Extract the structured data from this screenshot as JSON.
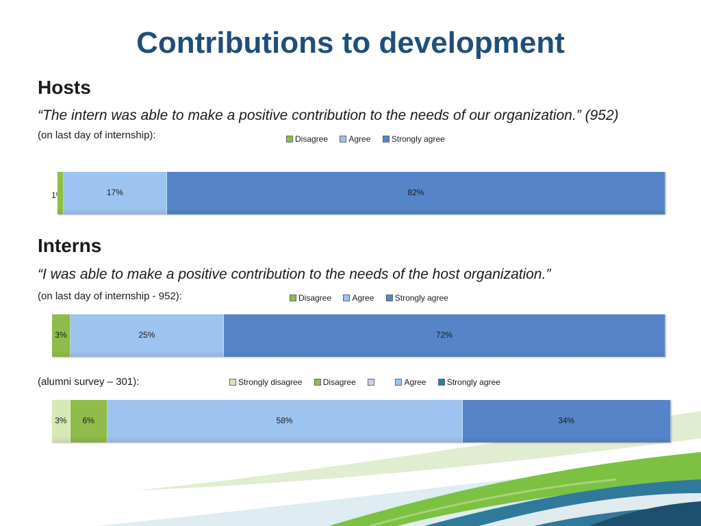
{
  "title": "Contributions to development",
  "colors": {
    "strongly_disagree": "#d7e8b5",
    "disagree": "#8fbc4a",
    "agree": "#9dc3f0",
    "strongly_agree": "#5585c8",
    "blank": "#c7d3e6",
    "swatch_strongly_agree": "#2a7fa4"
  },
  "hosts": {
    "heading": "Hosts",
    "quote": "“The intern was able to make a positive contribution to the needs of our organization.” (952)",
    "note": "(on last day of internship):",
    "legend": [
      "Disagree",
      "Agree",
      "Strongly agree"
    ]
  },
  "interns": {
    "heading": "Interns",
    "quote": "“I was able to make a positive contribution to the needs of the host organization.”",
    "note1": "(on last day of internship - 952):",
    "legend1": [
      "Disagree",
      "Agree",
      "Strongly agree"
    ],
    "note2": "(alumni survey – 301):",
    "legend2": [
      "Strongly disagree",
      "Disagree",
      "",
      "Agree",
      "Strongly agree"
    ]
  },
  "chart_data": [
    {
      "type": "bar",
      "stacked": true,
      "orientation": "horizontal",
      "categories": [
        "Hosts (on last day of internship)"
      ],
      "series": [
        {
          "name": "Disagree",
          "values": [
            1
          ],
          "label": "1%"
        },
        {
          "name": "Agree",
          "values": [
            17
          ],
          "label": "17%"
        },
        {
          "name": "Strongly agree",
          "values": [
            82
          ],
          "label": "82%"
        }
      ],
      "legend": "top"
    },
    {
      "type": "bar",
      "stacked": true,
      "orientation": "horizontal",
      "categories": [
        "Interns (on last day of internship - 952)"
      ],
      "series": [
        {
          "name": "Disagree",
          "values": [
            3
          ],
          "label": "3%"
        },
        {
          "name": "Agree",
          "values": [
            25
          ],
          "label": "25%"
        },
        {
          "name": "Strongly agree",
          "values": [
            72
          ],
          "label": "72%"
        }
      ],
      "legend": "top"
    },
    {
      "type": "bar",
      "stacked": true,
      "orientation": "horizontal",
      "categories": [
        "Interns (alumni survey – 301)"
      ],
      "series": [
        {
          "name": "Strongly disagree",
          "values": [
            3
          ],
          "label": "3%"
        },
        {
          "name": "Disagree",
          "values": [
            6
          ],
          "label": "6%"
        },
        {
          "name": "Agree",
          "values": [
            58
          ],
          "label": "58%"
        },
        {
          "name": "Strongly agree",
          "values": [
            34
          ],
          "label": "34%"
        }
      ],
      "legend": "top"
    }
  ]
}
